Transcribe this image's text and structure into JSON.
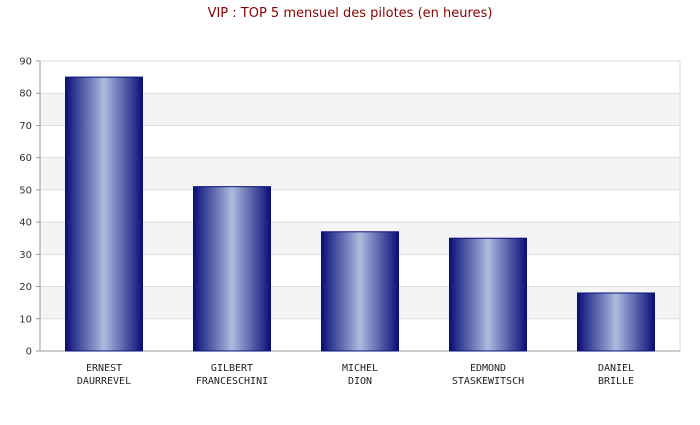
{
  "chart_data": {
    "type": "bar",
    "title": "VIP : TOP 5 mensuel des pilotes (en heures)",
    "categories": [
      [
        "ERNEST",
        "DAURREVEL"
      ],
      [
        "GILBERT",
        "FRANCESCHINI"
      ],
      [
        "MICHEL",
        "DION"
      ],
      [
        "EDMOND",
        "STASKEWITSCH"
      ],
      [
        "DANIEL",
        "BRILLE"
      ]
    ],
    "values": [
      85,
      51,
      37,
      35,
      18
    ],
    "ylim": [
      0,
      90
    ],
    "yticks": [
      0,
      10,
      20,
      30,
      40,
      50,
      60,
      70,
      80,
      90
    ],
    "xlabel": "",
    "ylabel": "",
    "grid": true,
    "colors": {
      "title": "#8b0000",
      "bar_edge": "#0a0f7a",
      "bar_center": "#aabcde",
      "band": "#f4f4f4",
      "gridline": "#dddddd",
      "axis": "#999999"
    }
  }
}
